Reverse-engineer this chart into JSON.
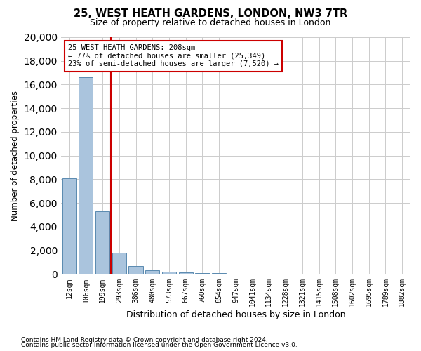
{
  "title1": "25, WEST HEATH GARDENS, LONDON, NW3 7TR",
  "title2": "Size of property relative to detached houses in London",
  "xlabel": "Distribution of detached houses by size in London",
  "ylabel": "Number of detached properties",
  "bin_labels": [
    "12sqm",
    "106sqm",
    "199sqm",
    "293sqm",
    "386sqm",
    "480sqm",
    "573sqm",
    "667sqm",
    "760sqm",
    "854sqm",
    "947sqm",
    "1041sqm",
    "1134sqm",
    "1228sqm",
    "1321sqm",
    "1415sqm",
    "1508sqm",
    "1602sqm",
    "1695sqm",
    "1789sqm",
    "1882sqm"
  ],
  "bar_heights": [
    8100,
    16600,
    5300,
    1800,
    700,
    350,
    200,
    120,
    80,
    60,
    50,
    40,
    30,
    25,
    20,
    15,
    12,
    10,
    8,
    6,
    4
  ],
  "bar_color": "#aac4dd",
  "bar_edge_color": "#5a8ab0",
  "vline_pos": 2.5,
  "vline_color": "#cc0000",
  "annotation_text": "25 WEST HEATH GARDENS: 208sqm\n← 77% of detached houses are smaller (25,349)\n23% of semi-detached houses are larger (7,520) →",
  "annotation_box_color": "#cc0000",
  "ylim": [
    0,
    20000
  ],
  "yticks": [
    0,
    2000,
    4000,
    6000,
    8000,
    10000,
    12000,
    14000,
    16000,
    18000,
    20000
  ],
  "footer1": "Contains HM Land Registry data © Crown copyright and database right 2024.",
  "footer2": "Contains public sector information licensed under the Open Government Licence v3.0.",
  "bg_color": "#ffffff",
  "grid_color": "#cccccc"
}
